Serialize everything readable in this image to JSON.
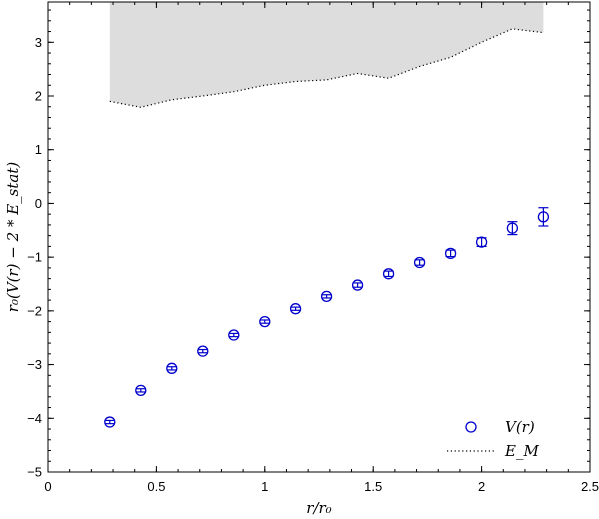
{
  "chart_data": {
    "type": "scatter",
    "title": "",
    "xlabel": "r/r₀",
    "ylabel": "r₀(V(r) − 2 * E_stat)",
    "xlim": [
      0,
      2.5
    ],
    "ylim": [
      -5,
      3.75
    ],
    "xticks": [
      "0",
      "0.5",
      "1",
      "1.5",
      "2",
      "2.5"
    ],
    "xtick_values": [
      0,
      0.5,
      1,
      1.5,
      2,
      2.5
    ],
    "yticks": [
      "−5",
      "−4",
      "−3",
      "−2",
      "−1",
      "0",
      "1",
      "2",
      "3"
    ],
    "ytick_values": [
      -5,
      -4,
      -3,
      -2,
      -1,
      0,
      1,
      2,
      3
    ],
    "grid": false,
    "legend_position": "bottom-right",
    "series": [
      {
        "name": "V(r)",
        "type": "scatter-errorbar",
        "color": "#0000cc",
        "x": [
          0.285,
          0.428,
          0.571,
          0.714,
          0.857,
          1.0,
          1.142,
          1.285,
          1.428,
          1.571,
          1.714,
          1.857,
          2.0,
          2.142,
          2.285
        ],
        "y": [
          -4.07,
          -3.48,
          -3.07,
          -2.75,
          -2.45,
          -2.2,
          -1.96,
          -1.73,
          -1.52,
          -1.31,
          -1.1,
          -0.93,
          -0.72,
          -0.46,
          -0.25
        ],
        "yerr": [
          0.03,
          0.03,
          0.03,
          0.03,
          0.03,
          0.03,
          0.03,
          0.03,
          0.04,
          0.05,
          0.05,
          0.06,
          0.08,
          0.12,
          0.17
        ]
      },
      {
        "name": "E_M",
        "type": "line-dotted",
        "color": "#000000",
        "fill": "#dddddd",
        "x": [
          0.285,
          0.428,
          0.571,
          0.714,
          0.857,
          1.0,
          1.142,
          1.285,
          1.428,
          1.571,
          1.714,
          1.857,
          2.0,
          2.142,
          2.285
        ],
        "y": [
          1.9,
          1.79,
          1.93,
          2.0,
          2.08,
          2.2,
          2.27,
          2.3,
          2.42,
          2.33,
          2.55,
          2.72,
          3.0,
          3.25,
          3.18
        ]
      }
    ],
    "legend": [
      {
        "label": "V(r)",
        "marker": "circle"
      },
      {
        "label": "E_M",
        "marker": "dotted-line"
      }
    ]
  }
}
